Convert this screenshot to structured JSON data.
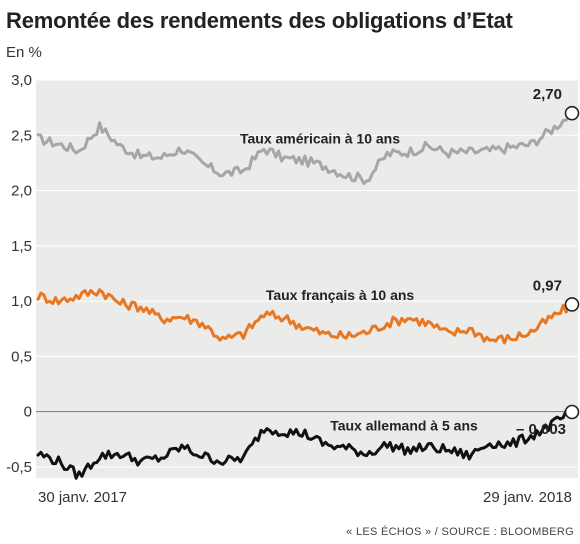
{
  "header": {
    "title": "Remontée des rendements des obligations d’Etat",
    "unit": "En %"
  },
  "footer": {
    "source": "« LES ÉCHOS » / SOURCE : BLOOMBERG"
  },
  "colors": {
    "background_panel": "#ebebea",
    "us": "#a6a6a6",
    "fr": "#e87722",
    "de": "#111111",
    "zero_line": "#777777"
  },
  "chart_data": {
    "type": "line",
    "title": "Remontée des rendements des obligations d’Etat",
    "ylabel": "En %",
    "ylim": [
      -0.6,
      3.0
    ],
    "yticks": [
      3.0,
      2.5,
      2.0,
      1.5,
      1.0,
      0.5,
      0,
      -0.5
    ],
    "ytick_labels": [
      "3,0",
      "2,5",
      "2,0",
      "1,5",
      "1,0",
      "0,5",
      "0",
      "-0,5"
    ],
    "x_start_label": "30 janv. 2017",
    "x_end_label": "29 janv. 2018",
    "x": [
      "2017-01-30",
      "2017-02-13",
      "2017-02-27",
      "2017-03-13",
      "2017-03-27",
      "2017-04-10",
      "2017-04-24",
      "2017-05-08",
      "2017-05-22",
      "2017-06-05",
      "2017-06-19",
      "2017-07-03",
      "2017-07-17",
      "2017-07-31",
      "2017-08-14",
      "2017-08-28",
      "2017-09-11",
      "2017-09-25",
      "2017-10-09",
      "2017-10-23",
      "2017-11-06",
      "2017-11-20",
      "2017-12-04",
      "2017-12-18",
      "2018-01-01",
      "2018-01-15",
      "2018-01-29"
    ],
    "series": [
      {
        "name": "Taux américain à 10 ans",
        "end_value": 2.7,
        "end_label": "2,70",
        "values": [
          2.47,
          2.42,
          2.36,
          2.58,
          2.4,
          2.31,
          2.3,
          2.38,
          2.24,
          2.15,
          2.18,
          2.38,
          2.29,
          2.27,
          2.22,
          2.14,
          2.1,
          2.33,
          2.35,
          2.4,
          2.34,
          2.35,
          2.36,
          2.39,
          2.42,
          2.55,
          2.7
        ]
      },
      {
        "name": "Taux français à 10 ans",
        "end_value": 0.97,
        "end_label": "0,97",
        "values": [
          1.05,
          1.0,
          1.05,
          1.1,
          0.98,
          0.95,
          0.84,
          0.86,
          0.8,
          0.65,
          0.7,
          0.88,
          0.85,
          0.76,
          0.7,
          0.68,
          0.72,
          0.8,
          0.85,
          0.8,
          0.7,
          0.75,
          0.65,
          0.66,
          0.72,
          0.85,
          0.97
        ]
      },
      {
        "name": "Taux allemand à 5 ans",
        "end_value": -0.003,
        "end_label": "– 0,003",
        "values": [
          -0.38,
          -0.45,
          -0.58,
          -0.4,
          -0.38,
          -0.45,
          -0.42,
          -0.32,
          -0.4,
          -0.45,
          -0.42,
          -0.15,
          -0.18,
          -0.2,
          -0.3,
          -0.33,
          -0.38,
          -0.3,
          -0.35,
          -0.32,
          -0.35,
          -0.4,
          -0.28,
          -0.3,
          -0.22,
          -0.12,
          -0.003
        ]
      }
    ]
  }
}
